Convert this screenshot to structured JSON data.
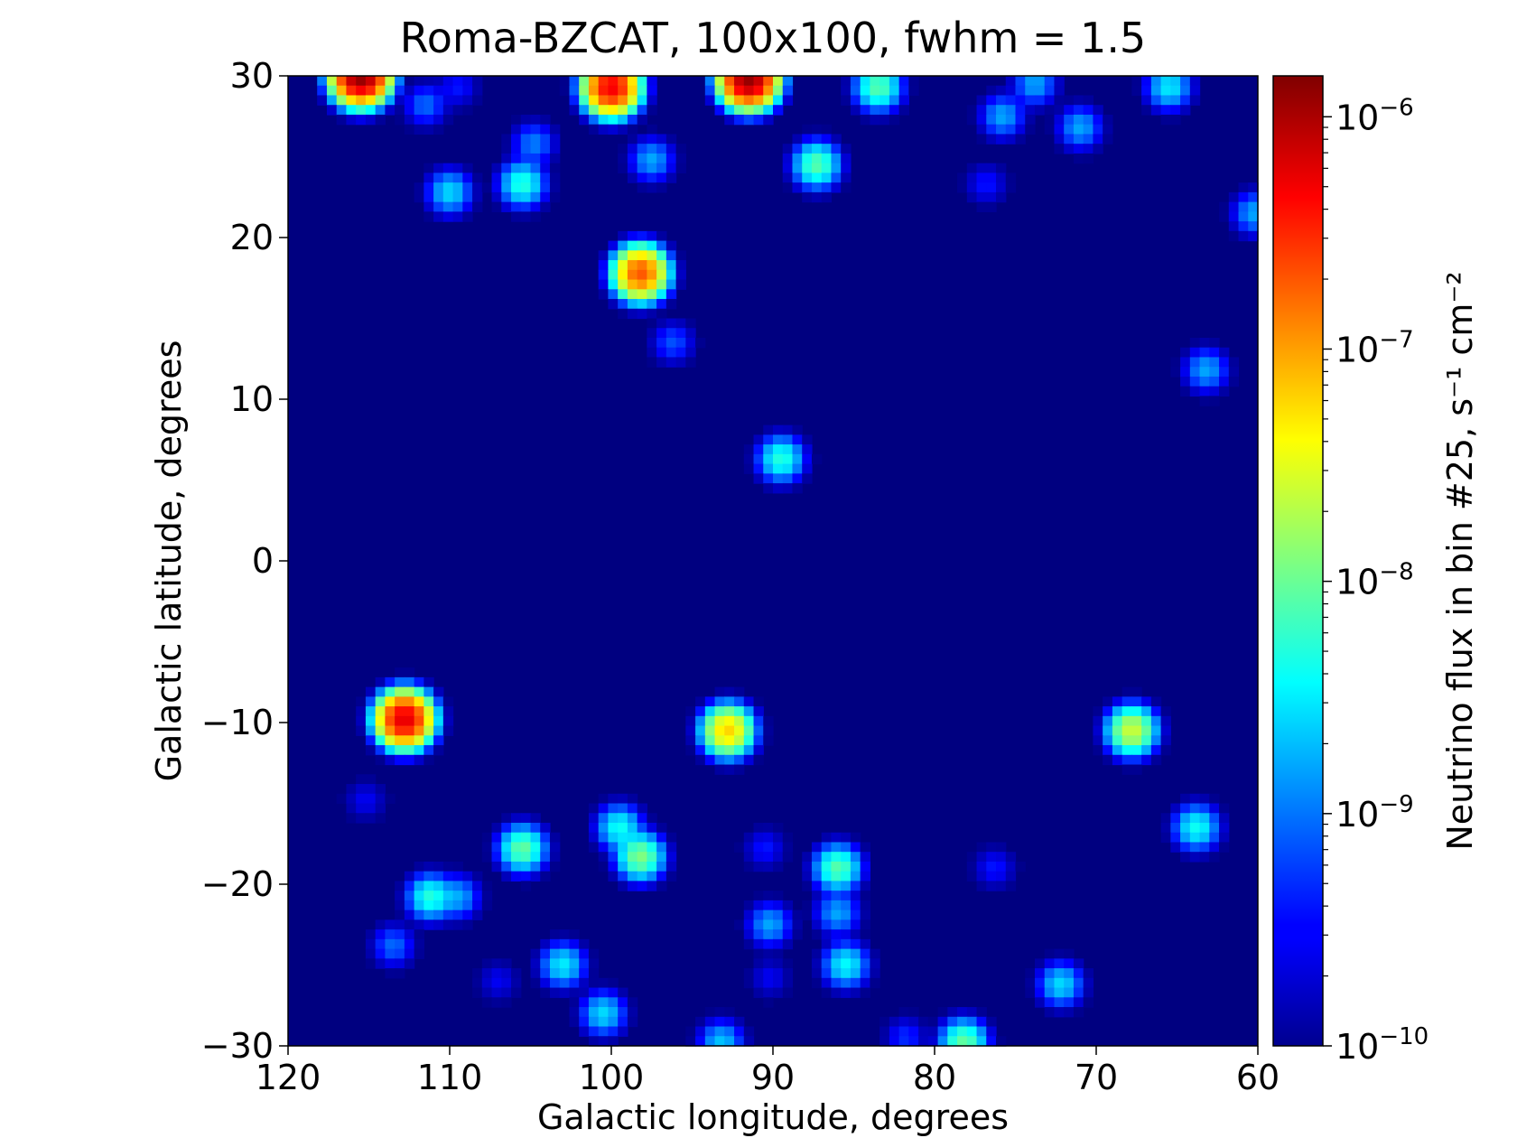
{
  "chart_data": {
    "type": "heatmap",
    "title": "Roma-BZCAT, 100x100, fwhm = 1.5",
    "xlabel": "Galactic longitude, degrees",
    "ylabel": "Galactic latitude, degrees",
    "xlim": [
      120,
      60
    ],
    "ylim": [
      -30,
      30
    ],
    "x_ticks": [
      120,
      110,
      100,
      90,
      80,
      70,
      60
    ],
    "x_tick_labels": [
      "120",
      "110",
      "100",
      "90",
      "80",
      "70",
      "60"
    ],
    "y_ticks": [
      30,
      20,
      10,
      0,
      -10,
      -20,
      -30
    ],
    "y_tick_labels": [
      "30",
      "20",
      "10",
      "0",
      "−10",
      "−20",
      "−30"
    ],
    "grid": false,
    "colormap": "jet",
    "colorbar": {
      "label": "Neutrino flux in bin #25, s⁻¹ cm⁻²",
      "scale": "log",
      "range": [
        1e-10,
        1.5e-06
      ],
      "ticks": [
        1e-10,
        1e-09,
        1e-08,
        1e-07,
        1e-06
      ],
      "tick_labels": [
        {
          "base": "10",
          "exp": "−10"
        },
        {
          "base": "10",
          "exp": "−9"
        },
        {
          "base": "10",
          "exp": "−8"
        },
        {
          "base": "10",
          "exp": "−7"
        },
        {
          "base": "10",
          "exp": "−6"
        }
      ]
    },
    "background_value": 1e-10,
    "sources": [
      {
        "l": 115.5,
        "b": 30.0,
        "peak": 1.3e-06
      },
      {
        "l": 100.0,
        "b": 29.3,
        "peak": 5e-07
      },
      {
        "l": 91.5,
        "b": 29.8,
        "peak": 1.2e-06
      },
      {
        "l": 83.5,
        "b": 29.3,
        "peak": 8e-09
      },
      {
        "l": 65.5,
        "b": 29.3,
        "peak": 3e-09
      },
      {
        "l": 73.8,
        "b": 29.5,
        "peak": 1.5e-09
      },
      {
        "l": 111.5,
        "b": 28.2,
        "peak": 8e-10
      },
      {
        "l": 109.5,
        "b": 29.3,
        "peak": 3e-10
      },
      {
        "l": 75.8,
        "b": 27.5,
        "peak": 1.5e-09
      },
      {
        "l": 71.0,
        "b": 26.8,
        "peak": 1.5e-09
      },
      {
        "l": 104.8,
        "b": 25.8,
        "peak": 1e-09
      },
      {
        "l": 97.5,
        "b": 24.8,
        "peak": 1.5e-09
      },
      {
        "l": 87.3,
        "b": 24.5,
        "peak": 8e-09
      },
      {
        "l": 105.5,
        "b": 23.3,
        "peak": 5e-09
      },
      {
        "l": 110.0,
        "b": 22.8,
        "peak": 2.5e-09
      },
      {
        "l": 76.8,
        "b": 23.3,
        "peak": 3e-10
      },
      {
        "l": 60.2,
        "b": 21.5,
        "peak": 1.5e-09
      },
      {
        "l": 98.2,
        "b": 17.8,
        "peak": 2e-07
      },
      {
        "l": 96.2,
        "b": 13.5,
        "peak": 6e-10
      },
      {
        "l": 63.2,
        "b": 11.8,
        "peak": 1.5e-09
      },
      {
        "l": 89.5,
        "b": 6.3,
        "peak": 5e-09
      },
      {
        "l": 112.8,
        "b": -9.8,
        "peak": 6e-07
      },
      {
        "l": 92.8,
        "b": -10.5,
        "peak": 6e-08
      },
      {
        "l": 67.8,
        "b": -10.5,
        "peak": 2.5e-08
      },
      {
        "l": 115.2,
        "b": -14.8,
        "peak": 2e-10
      },
      {
        "l": 99.5,
        "b": -16.5,
        "peak": 4e-09
      },
      {
        "l": 63.8,
        "b": -16.5,
        "peak": 4e-09
      },
      {
        "l": 105.5,
        "b": -17.8,
        "peak": 9e-09
      },
      {
        "l": 98.2,
        "b": -18.3,
        "peak": 1.2e-08
      },
      {
        "l": 90.5,
        "b": -17.8,
        "peak": 3e-10
      },
      {
        "l": 86.0,
        "b": -19.0,
        "peak": 8e-09
      },
      {
        "l": 76.3,
        "b": -19.0,
        "peak": 3e-10
      },
      {
        "l": 111.2,
        "b": -20.8,
        "peak": 5e-09
      },
      {
        "l": 109.5,
        "b": -20.8,
        "peak": 1.5e-09
      },
      {
        "l": 86.0,
        "b": -21.8,
        "peak": 1.5e-09
      },
      {
        "l": 90.2,
        "b": -22.5,
        "peak": 1.5e-09
      },
      {
        "l": 113.5,
        "b": -23.8,
        "peak": 8e-10
      },
      {
        "l": 103.0,
        "b": -25.0,
        "peak": 3e-09
      },
      {
        "l": 85.5,
        "b": -25.0,
        "peak": 3.5e-09
      },
      {
        "l": 90.2,
        "b": -25.8,
        "peak": 2e-10
      },
      {
        "l": 72.2,
        "b": -26.2,
        "peak": 2.5e-09
      },
      {
        "l": 107.0,
        "b": -26.0,
        "peak": 2e-10
      },
      {
        "l": 100.5,
        "b": -28.0,
        "peak": 2.5e-09
      },
      {
        "l": 93.2,
        "b": -29.8,
        "peak": 2e-09
      },
      {
        "l": 81.8,
        "b": -29.5,
        "peak": 4e-10
      },
      {
        "l": 78.2,
        "b": -29.8,
        "peak": 9e-09
      }
    ]
  }
}
